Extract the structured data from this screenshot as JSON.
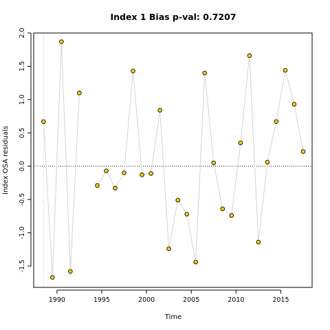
{
  "chart_data": {
    "type": "scatter",
    "title": "Index 1 Bias p-val: 0.7207",
    "title_color": "#228B22",
    "xlabel": "Time",
    "ylabel": "Index OSA residuals",
    "xlim": [
      1987.4,
      2018.5
    ],
    "ylim": [
      -1.82,
      2.0
    ],
    "x_ticks": [
      1990,
      1995,
      2000,
      2005,
      2010,
      2015
    ],
    "x_tick_labels": [
      "1990",
      "1995",
      "2000",
      "2005",
      "2010",
      "2015"
    ],
    "y_ticks": [
      -1.5,
      -1.0,
      -0.5,
      0.0,
      0.5,
      1.0,
      1.5,
      2.0
    ],
    "y_tick_labels": [
      "-1.5",
      "-1.0",
      "-0.5",
      "0.0",
      "0.5",
      "1.0",
      "1.5",
      "2.0"
    ],
    "reference_line_y": 0,
    "vertical_reference_x": 1988.5,
    "point_fill": "#FFD700",
    "point_stroke": "#000000",
    "line_color": "#D3D3D3",
    "segments": [
      {
        "x": [
          1988.5,
          1989.5,
          1990.5,
          1991.5,
          1992.5
        ],
        "y": [
          0.67,
          -1.67,
          1.87,
          -1.58,
          1.1
        ]
      },
      {
        "x": [
          1994.5,
          1995.5,
          1996.5,
          1997.5,
          1998.5,
          1999.5,
          2000.5,
          2001.5,
          2002.5,
          2003.5,
          2004.5,
          2005.5,
          2006.5,
          2007.5,
          2008.5,
          2009.5,
          2010.5,
          2011.5,
          2012.5,
          2013.5,
          2014.5,
          2015.5,
          2016.5,
          2017.5
        ],
        "y": [
          -0.29,
          -0.07,
          -0.33,
          -0.1,
          1.43,
          -0.13,
          -0.11,
          0.84,
          -1.24,
          -0.51,
          -0.72,
          -1.44,
          1.4,
          0.05,
          -0.64,
          -0.74,
          0.35,
          1.66,
          -1.14,
          0.06,
          0.67,
          1.44,
          0.93,
          0.22
        ]
      }
    ]
  }
}
